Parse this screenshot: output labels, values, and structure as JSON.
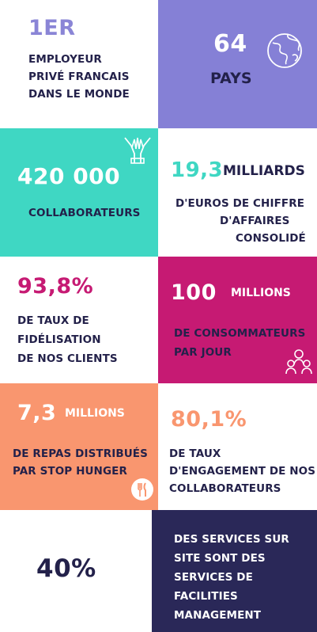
{
  "colors": {
    "navy": "#23214a",
    "purple": "#8a85d6",
    "lavender": "#8580d6",
    "teal": "#3fd7c3",
    "magenta": "#c61a73",
    "salmon": "#f9966f",
    "dark_blue": "#2a2858",
    "white": "#ffffff"
  },
  "b1": {
    "stat": "1ER",
    "line1": "EMPLOYEUR",
    "line2": "PRIVÉ FRANCAIS",
    "line3": "DANS LE MONDE"
  },
  "b2": {
    "stat": "64",
    "label": "PAYS",
    "icon": "globe-icon"
  },
  "b3": {
    "stat": "420 000",
    "label": "COLLABORATEURS",
    "icon": "hands-together-icon"
  },
  "b4": {
    "stat": "19,3",
    "unit": "MILLIARDS",
    "line1": "D'EUROS DE CHIFFRE",
    "line2": "D'AFFAIRES",
    "line3": "CONSOLIDÉ"
  },
  "b5": {
    "stat": "93,8%",
    "line1": "DE TAUX DE",
    "line2": "FIDÉLISATION",
    "line3": "DE NOS CLIENTS"
  },
  "b6": {
    "stat": "100",
    "unit": "MILLIONS",
    "line1": "DE CONSOMMATEURS",
    "line2": "PAR JOUR",
    "icon": "people-group-icon"
  },
  "b7": {
    "stat": "7,3",
    "unit": "MILLIONS",
    "line1": "DE REPAS DISTRIBUÉS",
    "line2": "PAR STOP HUNGER",
    "icon": "fork-knife-icon"
  },
  "b8": {
    "stat": "80,1%",
    "line1": "DE TAUX",
    "line2": "D'ENGAGEMENT DE NOS",
    "line3": "COLLABORATEURS"
  },
  "b9": {
    "stat": "40%"
  },
  "b10": {
    "line1": "DES SERVICES SUR",
    "line2": "SITE SONT DES",
    "line3": "SERVICES DE",
    "line4": "FACILITIES",
    "line5": "MANAGEMENT"
  }
}
